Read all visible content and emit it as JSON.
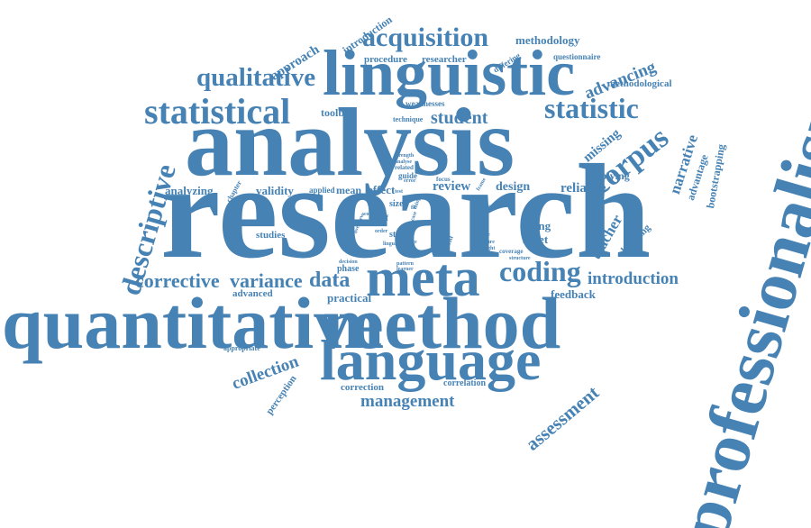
{
  "color": "#4682b4",
  "words": [
    "research",
    "analysis",
    "linguistic",
    "professionalism",
    "quantitative",
    "method",
    "language",
    "meta",
    "statistical",
    "qualitative",
    "acquisition",
    "descriptive",
    "statistic",
    "corpus",
    "coding",
    "data",
    "corrective",
    "variance",
    "student",
    "advancing",
    "introduction",
    "approach",
    "methodology",
    "procedure",
    "researcher",
    "differing",
    "questionnaire",
    "methodological",
    "toolbox",
    "weaknesses",
    "technique",
    "missing",
    "narrative",
    "advantage",
    "bootstrapping",
    "applying",
    "reliance",
    "design",
    "review",
    "mean",
    "effect",
    "applied",
    "validity",
    "analyzing",
    "chapter",
    "studies",
    "doing",
    "sheet",
    "teacher",
    "bridging",
    "feedback",
    "advanced",
    "practical",
    "phase",
    "concept",
    "collection",
    "appropriate",
    "perception",
    "correction",
    "correlation",
    "management",
    "assessment",
    "self",
    "size",
    "study",
    "guide",
    "related",
    "focus",
    "variety",
    "strength",
    "analyse",
    "error",
    "word",
    "overview",
    "case",
    "field",
    "basic",
    "power",
    "value",
    "order",
    "lingua",
    "fit",
    "nature",
    "insight",
    "coverage",
    "structure",
    "pattern",
    "learner",
    "decision",
    "anova",
    "thing",
    "test",
    "text",
    "frame",
    "range",
    "test"
  ]
}
